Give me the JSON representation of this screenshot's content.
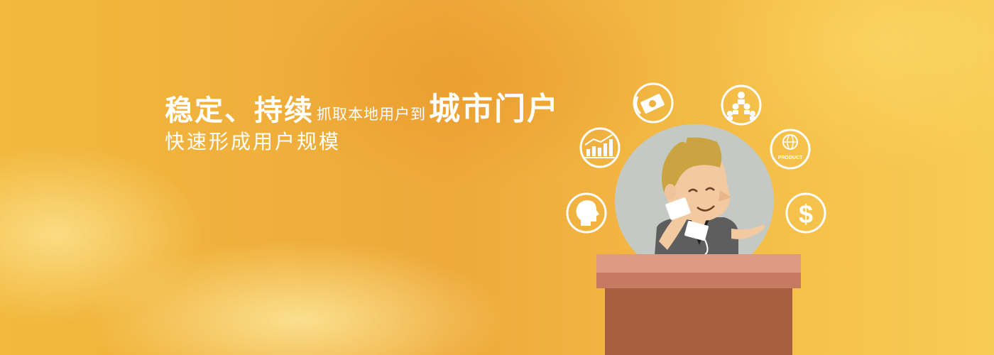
{
  "headline": {
    "part1": "稳定、持续",
    "part2": "抓取本地用户到",
    "part3": "城市门户",
    "line2": "快速形成用户规模"
  },
  "badges": {
    "product_label": "PRODUCT",
    "dollar_symbol": "$",
    "icons": [
      "money-icon",
      "organization-icon",
      "globe-product-icon",
      "dollar-icon",
      "user-head-icon",
      "growth-chart-icon"
    ]
  },
  "colors": {
    "background": "#f0b03c",
    "text": "#ffffff",
    "podium_top": "#d9917c",
    "podium_body": "#a85f41",
    "halo": "#c4c9c4"
  }
}
